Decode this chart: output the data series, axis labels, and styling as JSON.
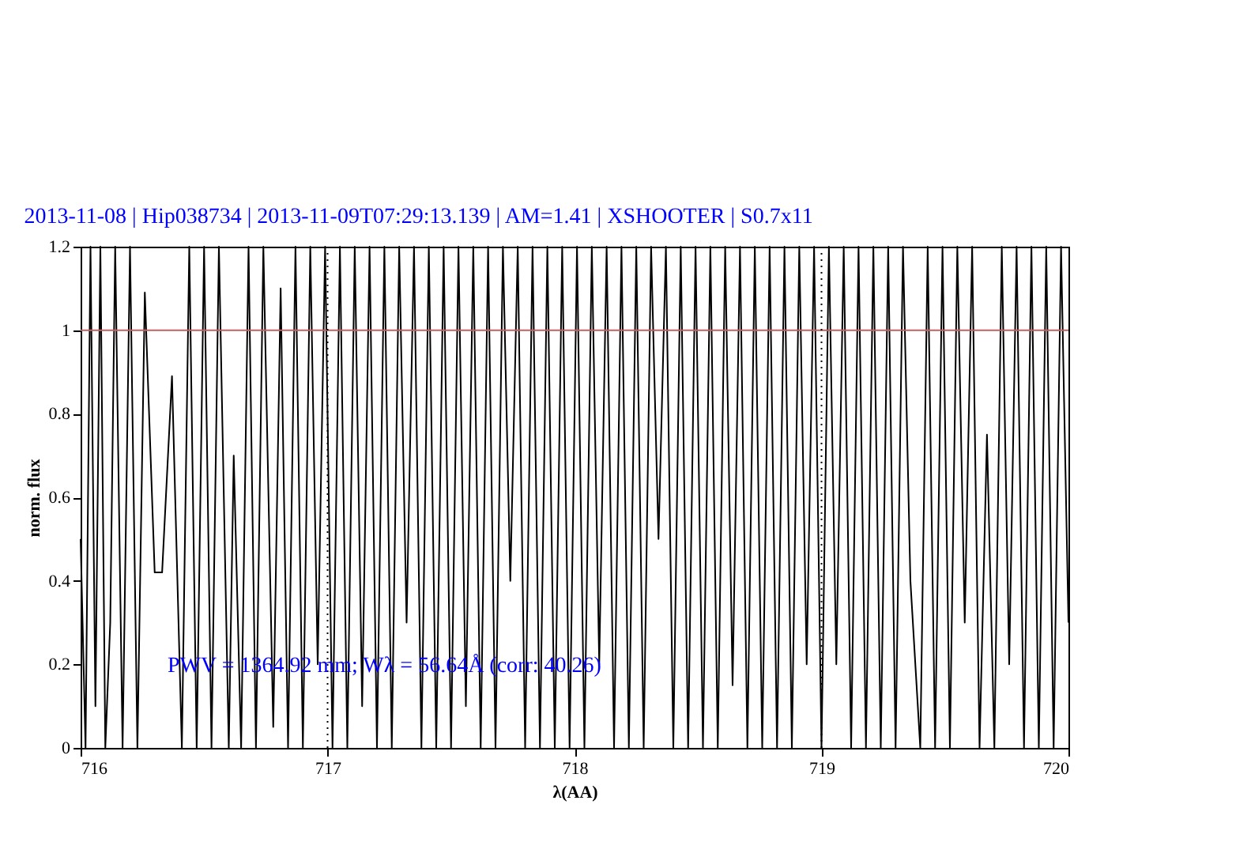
{
  "chart_data": {
    "type": "line",
    "title": "2013-11-08 | Hip038734 | 2013-11-09T07:29:13.139 | AM=1.41 | XSHOOTER | S0.7x11",
    "xlabel": "λ(AA)",
    "ylabel": "norm. flux",
    "annotations": [
      "PWV = 1364.92 mm; Wλ = 56.64Å (corr: 40.26)"
    ],
    "x": [
      716.0,
      716.02,
      716.04,
      716.06,
      716.08,
      716.1,
      716.12,
      716.14,
      716.17,
      716.2,
      716.23,
      716.26,
      716.3,
      716.33,
      716.37,
      716.41,
      716.44,
      716.47,
      716.5,
      716.53,
      716.56,
      716.6,
      716.62,
      716.65,
      716.68,
      716.71,
      716.74,
      716.78,
      716.81,
      716.84,
      716.87,
      716.9,
      716.93,
      716.96,
      716.99,
      717.02,
      717.05,
      717.08,
      717.11,
      717.14,
      717.17,
      717.2,
      717.23,
      717.26,
      717.29,
      717.32,
      717.35,
      717.38,
      717.41,
      717.44,
      717.47,
      717.5,
      717.53,
      717.56,
      717.59,
      717.62,
      717.65,
      717.68,
      717.71,
      717.74,
      717.77,
      717.8,
      717.83,
      717.86,
      717.89,
      717.92,
      717.95,
      717.98,
      718.01,
      718.04,
      718.07,
      718.1,
      718.13,
      718.16,
      718.19,
      718.22,
      718.25,
      718.28,
      718.31,
      718.34,
      718.37,
      718.4,
      718.43,
      718.46,
      718.49,
      718.52,
      718.55,
      718.58,
      718.61,
      718.64,
      718.67,
      718.7,
      718.73,
      718.76,
      718.79,
      718.82,
      718.85,
      718.88,
      718.91,
      718.94,
      718.97,
      719.0,
      719.03,
      719.06,
      719.09,
      719.12,
      719.15,
      719.18,
      719.21,
      719.24,
      719.27,
      719.3,
      719.33,
      719.36,
      719.4,
      719.43,
      719.46,
      719.49,
      719.52,
      719.55,
      719.58,
      719.61,
      719.64,
      719.67,
      719.7,
      719.73,
      719.76,
      719.79,
      719.82,
      719.85,
      719.88,
      719.91,
      719.94,
      719.97,
      720.0
    ],
    "series": [
      {
        "color": "#000000",
        "values": [
          0.5,
          0,
          1.2,
          0.1,
          1.2,
          0,
          0.3,
          1.2,
          0,
          1.2,
          0,
          1.09,
          0.42,
          0.42,
          0.89,
          0,
          1.2,
          0,
          1.2,
          0,
          1.2,
          0,
          0.7,
          0,
          1.2,
          0,
          1.2,
          0.05,
          1.1,
          0,
          1.2,
          0,
          1.2,
          0.2,
          1.2,
          0,
          1.2,
          0,
          1.2,
          0.1,
          1.2,
          0,
          1.2,
          0,
          1.2,
          0.3,
          1.2,
          0,
          1.2,
          0,
          1.2,
          0,
          1.2,
          0.1,
          1.2,
          0,
          1.2,
          0,
          1.2,
          0.4,
          1.2,
          0,
          1.2,
          0,
          1.2,
          0,
          1.2,
          0,
          1.2,
          0,
          1.2,
          0.2,
          1.2,
          0,
          1.2,
          0,
          1.2,
          0,
          1.2,
          0.5,
          1.2,
          0,
          1.2,
          0,
          1.2,
          0,
          1.2,
          0,
          1.2,
          0.15,
          1.2,
          0,
          1.2,
          0,
          1.2,
          0,
          1.2,
          0,
          1.2,
          0.2,
          1.2,
          0,
          1.2,
          0.2,
          1.2,
          0,
          1.2,
          0,
          1.2,
          0,
          1.2,
          0,
          1.2,
          0.4,
          0,
          1.2,
          0,
          1.2,
          0,
          1.2,
          0.3,
          1.2,
          0,
          0.75,
          0,
          1.2,
          0.2,
          1.2,
          0,
          1.2,
          0,
          1.2,
          0,
          1.2,
          0.3
        ]
      }
    ],
    "xlim": [
      716,
      720
    ],
    "xticks": [
      716,
      717,
      718,
      719,
      720
    ],
    "ylim": [
      0,
      1.2
    ],
    "yticks": [
      0,
      0.2,
      0.4,
      0.6,
      0.8,
      1,
      1.2
    ],
    "ref_lines": [
      {
        "axis": "y",
        "value": 1,
        "color": "#c06060",
        "line_style": "solid"
      },
      {
        "axis": "x",
        "value": 717,
        "color": "#000000",
        "line_style": "dotted"
      },
      {
        "axis": "x",
        "value": 719,
        "color": "#000000",
        "line_style": "dotted"
      }
    ],
    "grid": false,
    "marker": "none",
    "line_style": "solid"
  }
}
